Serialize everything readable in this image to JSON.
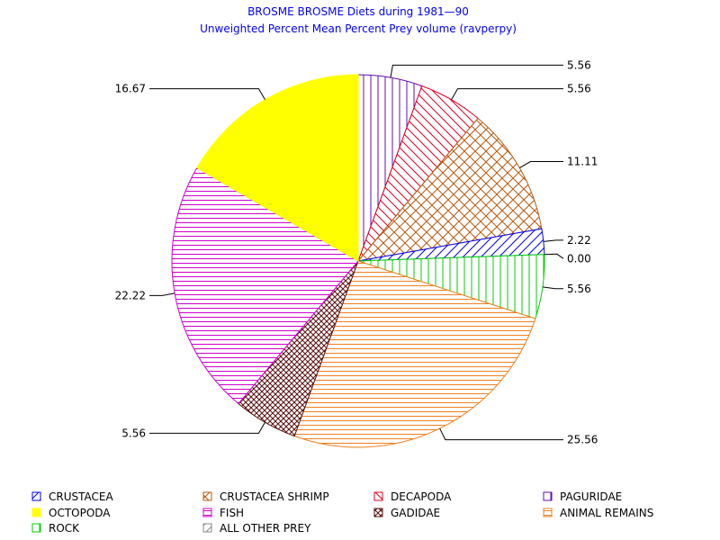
{
  "chart_data": {
    "type": "pie",
    "title": "BROSME BROSME Diets during 1981—90",
    "subtitle": "Unweighted Percent Mean Percent Prey  volume (ravperpy)",
    "slices": [
      {
        "name": "PAGURIDAE",
        "value": 5.56,
        "label": "5.56",
        "color": "#6a0dad",
        "pattern": "vertical"
      },
      {
        "name": "DECAPODA",
        "value": 5.56,
        "label": "5.56",
        "color": "#e00020",
        "pattern": "diag-down"
      },
      {
        "name": "CRUSTACEA SHRIMP",
        "value": 11.11,
        "label": "11.11",
        "color": "#b85a10",
        "pattern": "crosshatch"
      },
      {
        "name": "CRUSTACEA",
        "value": 2.22,
        "label": "2.22",
        "color": "#0000ff",
        "pattern": "diag-up"
      },
      {
        "name": "ALL OTHER PREY",
        "value": 0.0,
        "label": "0.00",
        "color": "#888888",
        "pattern": "diag-up"
      },
      {
        "name": "ROCK",
        "value": 5.56,
        "label": "5.56",
        "color": "#00d000",
        "pattern": "vertical"
      },
      {
        "name": "ANIMAL REMAINS",
        "value": 25.56,
        "label": "25.56",
        "color": "#f08020",
        "pattern": "horizontal"
      },
      {
        "name": "GADIDAE",
        "value": 5.56,
        "label": "5.56",
        "color": "#5a1010",
        "pattern": "crosshatch-fine"
      },
      {
        "name": "FISH",
        "value": 22.22,
        "label": "22.22",
        "color": "#d000d0",
        "pattern": "horizontal"
      },
      {
        "name": "OCTOPODA",
        "value": 16.67,
        "label": "16.67",
        "color": "#ffff00",
        "pattern": "solid"
      }
    ],
    "legend": {
      "placement": "bottom",
      "items": [
        {
          "name": "CRUSTACEA",
          "color": "#0000ff",
          "pattern": "diag-up"
        },
        {
          "name": "CRUSTACEA SHRIMP",
          "color": "#b85a10",
          "pattern": "crosshatch"
        },
        {
          "name": "DECAPODA",
          "color": "#e00020",
          "pattern": "diag-down"
        },
        {
          "name": "PAGURIDAE",
          "color": "#6a0dad",
          "pattern": "vertical"
        },
        {
          "name": "OCTOPODA",
          "color": "#ffff00",
          "pattern": "solid"
        },
        {
          "name": "FISH",
          "color": "#d000d0",
          "pattern": "horizontal"
        },
        {
          "name": "GADIDAE",
          "color": "#5a1010",
          "pattern": "crosshatch-fine"
        },
        {
          "name": "ANIMAL REMAINS",
          "color": "#f08020",
          "pattern": "horizontal"
        },
        {
          "name": "ROCK",
          "color": "#00d000",
          "pattern": "vertical"
        },
        {
          "name": "ALL OTHER PREY",
          "color": "#888888",
          "pattern": "diag-up"
        }
      ]
    }
  }
}
